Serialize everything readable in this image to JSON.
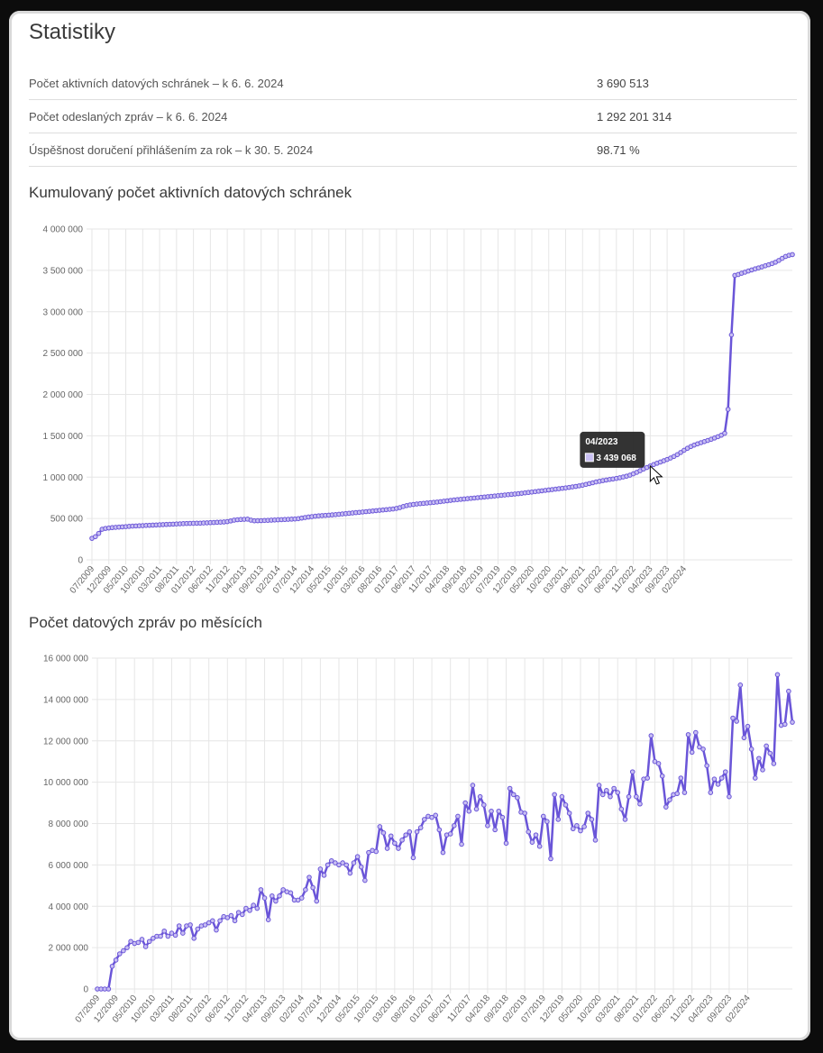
{
  "page": {
    "title": "Statistiky"
  },
  "stats": [
    {
      "label": "Počet aktivních datových schránek – k 6. 6. 2024",
      "value": "3 690 513"
    },
    {
      "label": "Počet odeslaných zpráv – k 6. 6. 2024",
      "value": "1 292 201 314"
    },
    {
      "label": "Úspěšnost doručení přihlášením za rok – k 30. 5. 2024",
      "value": "98.71 %"
    }
  ],
  "colors": {
    "line": "#6a55d8",
    "point_fill": "#c8bff2",
    "grid": "#e6e6e6",
    "axis_text": "#666666",
    "tooltip_bg": "#222222"
  },
  "tooltip": {
    "title": "04/2023",
    "value": "3 439 068"
  },
  "chart_data": [
    {
      "type": "line",
      "title": "Kumulovaný počet aktivních datových schránek",
      "xlabel": "",
      "ylabel": "",
      "ylim": [
        0,
        4000000
      ],
      "yticks": [
        "0",
        "500 000",
        "1 000 000",
        "1 500 000",
        "2 000 000",
        "2 500 000",
        "3 000 000",
        "3 500 000",
        "4 000 000"
      ],
      "xticks": [
        "07/2009",
        "12/2009",
        "05/2010",
        "10/2010",
        "03/2011",
        "08/2011",
        "01/2012",
        "06/2012",
        "11/2012",
        "04/2013",
        "09/2013",
        "02/2014",
        "07/2014",
        "12/2014",
        "05/2015",
        "10/2015",
        "03/2016",
        "08/2016",
        "01/2017",
        "06/2017",
        "11/2017",
        "04/2018",
        "09/2018",
        "02/2019",
        "07/2019",
        "12/2019",
        "05/2020",
        "10/2020",
        "03/2021",
        "08/2021",
        "01/2022",
        "06/2022",
        "11/2022",
        "04/2023",
        "09/2023",
        "02/2024"
      ],
      "start": "07/2009",
      "grid": true,
      "values": [
        260000,
        280000,
        320000,
        370000,
        380000,
        385000,
        390000,
        393000,
        396000,
        399000,
        402000,
        405000,
        408000,
        410000,
        412000,
        414000,
        416000,
        418000,
        420000,
        422000,
        424000,
        426000,
        428000,
        430000,
        432000,
        434000,
        436000,
        438000,
        440000,
        441000,
        442000,
        443000,
        444000,
        446000,
        448000,
        450000,
        452000,
        454000,
        456000,
        458000,
        462000,
        470000,
        480000,
        485000,
        488000,
        490000,
        492000,
        480000,
        472000,
        473000,
        474000,
        476000,
        478000,
        480000,
        482000,
        484000,
        486000,
        488000,
        490000,
        492000,
        494000,
        498000,
        505000,
        512000,
        518000,
        523000,
        528000,
        532000,
        535000,
        538000,
        541000,
        544000,
        547000,
        551000,
        555000,
        559000,
        563000,
        567000,
        571000,
        575000,
        579000,
        583000,
        587000,
        591000,
        595000,
        599000,
        603000,
        607000,
        611000,
        615000,
        622000,
        632000,
        645000,
        656000,
        664000,
        670000,
        675000,
        679000,
        683000,
        687000,
        691000,
        695000,
        699000,
        704000,
        709000,
        714000,
        719000,
        724000,
        728000,
        732000,
        736000,
        740000,
        744000,
        748000,
        752000,
        756000,
        760000,
        764000,
        768000,
        772000,
        776000,
        780000,
        784000,
        788000,
        792000,
        796000,
        800000,
        805000,
        810000,
        815000,
        820000,
        825000,
        830000,
        835000,
        840000,
        845000,
        850000,
        855000,
        860000,
        865000,
        870000,
        876000,
        882000,
        888000,
        895000,
        903000,
        912000,
        922000,
        932000,
        942000,
        950000,
        958000,
        965000,
        972000,
        978000,
        985000,
        993000,
        1002000,
        1012000,
        1024000,
        1040000,
        1058000,
        1078000,
        1098000,
        1117000,
        1135000,
        1152000,
        1168000,
        1183000,
        1198000,
        1214000,
        1231000,
        1250000,
        1272000,
        1298000,
        1325000,
        1349000,
        1370000,
        1388000,
        1403000,
        1417000,
        1430000,
        1444000,
        1458000,
        1473000,
        1489000,
        1507000,
        1530000,
        1820000,
        2720000,
        3439068,
        3450000,
        3465000,
        3478000,
        3492000,
        3505000,
        3518000,
        3530000,
        3542000,
        3555000,
        3568000,
        3582000,
        3598000,
        3620000,
        3645000,
        3668000,
        3682000,
        3690513
      ]
    },
    {
      "type": "line",
      "title": "Počet datových zpráv po měsících",
      "xlabel": "",
      "ylabel": "",
      "ylim": [
        0,
        16000000
      ],
      "yticks": [
        "0",
        "2 000 000",
        "4 000 000",
        "6 000 000",
        "8 000 000",
        "10 000 000",
        "12 000 000",
        "14 000 000",
        "16 000 000"
      ],
      "xticks": [
        "07/2009",
        "12/2009",
        "05/2010",
        "10/2010",
        "03/2011",
        "08/2011",
        "01/2012",
        "06/2012",
        "11/2012",
        "04/2013",
        "09/2013",
        "02/2014",
        "07/2014",
        "12/2014",
        "05/2015",
        "10/2015",
        "03/2016",
        "08/2016",
        "01/2017",
        "06/2017",
        "11/2017",
        "04/2018",
        "09/2018",
        "02/2019",
        "07/2019",
        "12/2019",
        "05/2020",
        "10/2020",
        "03/2021",
        "08/2021",
        "01/2022",
        "06/2022",
        "11/2022",
        "04/2023",
        "09/2023",
        "02/2024"
      ],
      "start": "07/2009",
      "grid": true,
      "values": [
        0,
        0,
        0,
        0,
        1100000,
        1400000,
        1700000,
        1850000,
        2000000,
        2300000,
        2200000,
        2250000,
        2400000,
        2050000,
        2300000,
        2450000,
        2550000,
        2550000,
        2800000,
        2550000,
        2700000,
        2600000,
        3050000,
        2700000,
        3050000,
        3100000,
        2450000,
        2900000,
        3050000,
        3100000,
        3200000,
        3300000,
        2850000,
        3300000,
        3500000,
        3450000,
        3550000,
        3300000,
        3700000,
        3600000,
        3900000,
        3800000,
        4050000,
        3900000,
        4800000,
        4400000,
        3350000,
        4500000,
        4250000,
        4500000,
        4800000,
        4700000,
        4650000,
        4300000,
        4300000,
        4400000,
        4800000,
        5400000,
        4900000,
        4250000,
        5800000,
        5500000,
        6000000,
        6200000,
        6100000,
        6000000,
        6100000,
        6000000,
        5600000,
        6100000,
        6400000,
        5900000,
        5250000,
        6600000,
        6700000,
        6650000,
        7850000,
        7550000,
        6800000,
        7400000,
        7050000,
        6800000,
        7200000,
        7450000,
        7600000,
        6350000,
        7600000,
        7800000,
        8200000,
        8350000,
        8300000,
        8400000,
        7700000,
        6600000,
        7450000,
        7500000,
        7900000,
        8350000,
        7000000,
        9000000,
        8600000,
        9850000,
        8700000,
        9300000,
        8900000,
        7900000,
        8600000,
        7700000,
        8600000,
        8300000,
        7050000,
        9700000,
        9400000,
        9250000,
        8550000,
        8500000,
        7600000,
        7100000,
        7450000,
        6900000,
        8350000,
        8100000,
        6300000,
        9400000,
        8200000,
        9300000,
        8900000,
        8500000,
        7750000,
        7900000,
        7650000,
        7850000,
        8500000,
        8200000,
        7200000,
        9850000,
        9400000,
        9600000,
        9300000,
        9700000,
        9500000,
        8700000,
        8200000,
        9300000,
        10500000,
        9300000,
        8950000,
        10150000,
        10200000,
        12250000,
        11000000,
        10900000,
        10300000,
        8800000,
        9150000,
        9400000,
        9450000,
        10200000,
        9500000,
        12300000,
        11450000,
        12400000,
        11700000,
        11600000,
        10800000,
        9500000,
        10150000,
        9900000,
        10200000,
        10500000,
        9300000,
        13100000,
        12950000,
        14700000,
        12150000,
        12700000,
        11600000,
        10200000,
        11150000,
        10600000,
        11750000,
        11400000,
        10900000,
        15200000,
        12750000,
        12800000,
        14400000,
        12900000
      ]
    }
  ]
}
